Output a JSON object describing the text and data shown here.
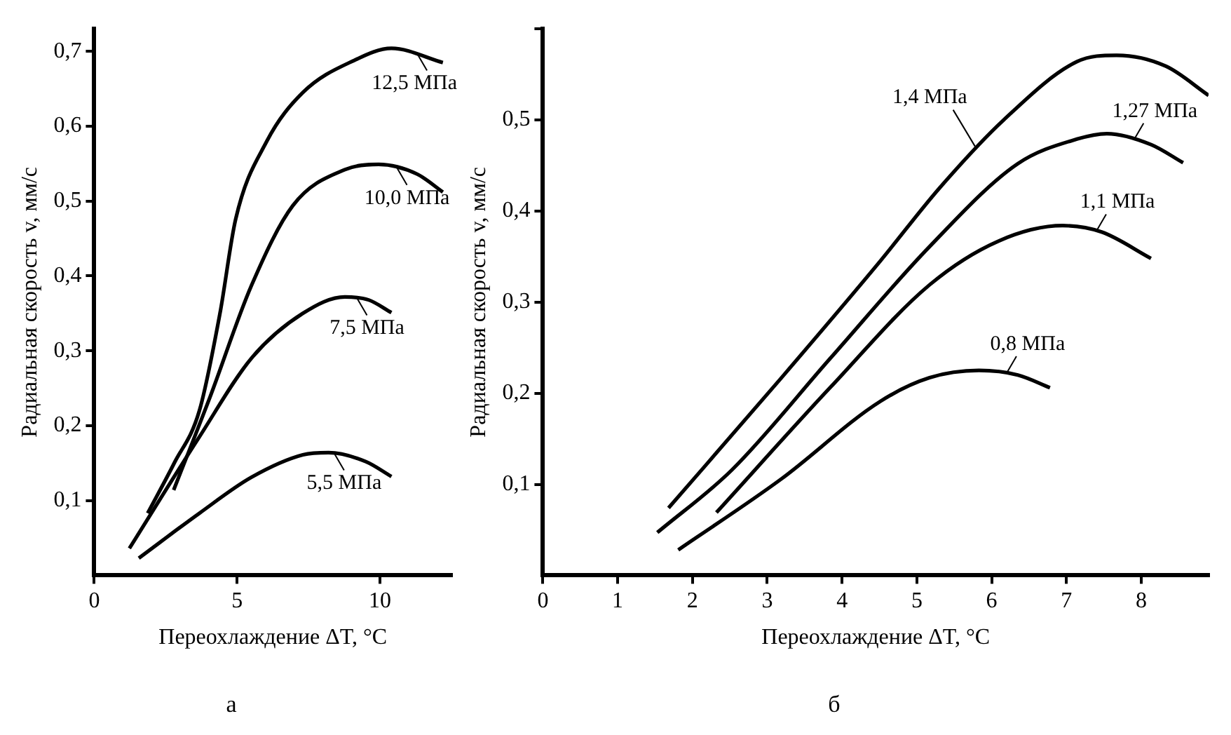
{
  "chart_data": [
    {
      "type": "line",
      "title": "а",
      "xlabel": "Переохлаждение ΔT, °C",
      "ylabel": "Радиальная скорость v, мм/с",
      "annotations": [
        {
          "text": "12,5 МПа",
          "x": 11.3,
          "y": 0.697
        },
        {
          "text": "10,0 МПа",
          "x": 10.6,
          "y": 0.544
        },
        {
          "text": "7,5 МПа",
          "x": 9.2,
          "y": 0.37
        },
        {
          "text": "5,5 МПа",
          "x": 8.4,
          "y": 0.163
        }
      ],
      "xlim": [
        0,
        12.5
      ],
      "ylim": [
        0,
        0.73
      ],
      "xticks": [
        0,
        5,
        10
      ],
      "yticks": [
        {
          "value": 0.1,
          "label": "0,1"
        },
        {
          "value": 0.2,
          "label": "0,2"
        },
        {
          "value": 0.3,
          "label": "0,3"
        },
        {
          "value": 0.4,
          "label": "0,4"
        },
        {
          "value": 0.5,
          "label": "0,5"
        },
        {
          "value": 0.6,
          "label": "0,6"
        },
        {
          "value": 0.7,
          "label": "0,7"
        }
      ],
      "grid": false,
      "marker": "none",
      "series": [
        {
          "color": "#000000",
          "x": [
            1.87,
            2.8,
            3.68,
            4.4,
            4.95,
            6.04,
            7.3,
            9.1,
            10.4,
            12.2
          ],
          "values": [
            0.083,
            0.15,
            0.22,
            0.35,
            0.476,
            0.58,
            0.645,
            0.688,
            0.704,
            0.685
          ]
        },
        {
          "color": "#000000",
          "x": [
            2.78,
            4.05,
            5.5,
            6.95,
            8.77,
            9.95,
            11.3,
            12.2
          ],
          "values": [
            0.114,
            0.238,
            0.387,
            0.494,
            0.542,
            0.549,
            0.536,
            0.512
          ]
        },
        {
          "color": "#000000",
          "x": [
            1.23,
            3.68,
            5.5,
            7.3,
            8.77,
            9.6,
            10.4
          ],
          "values": [
            0.036,
            0.185,
            0.29,
            0.35,
            0.372,
            0.368,
            0.351
          ]
        },
        {
          "color": "#000000",
          "x": [
            1.56,
            3.68,
            5.5,
            7.3,
            8.2,
            9.5,
            10.4
          ],
          "values": [
            0.023,
            0.083,
            0.131,
            0.161,
            0.164,
            0.152,
            0.132
          ]
        }
      ]
    },
    {
      "type": "line",
      "title": "б",
      "xlabel": "Переохлаждение ΔT, °C",
      "ylabel": "Радиальная скорость v, мм/с",
      "annotations": [
        {
          "text": "1,4 МПа",
          "x": 5.8,
          "y": 0.468
        },
        {
          "text": "1,27 МПа",
          "x": 7.9,
          "y": 0.478
        },
        {
          "text": "1,1 МПа",
          "x": 7.4,
          "y": 0.378
        },
        {
          "text": "0,8 МПа",
          "x": 6.2,
          "y": 0.222
        }
      ],
      "xlim": [
        0,
        8.9
      ],
      "ylim": [
        0,
        0.6
      ],
      "xticks": [
        0,
        1,
        2,
        3,
        4,
        5,
        6,
        7,
        8
      ],
      "yticks": [
        {
          "value": 0.1,
          "label": "0,1"
        },
        {
          "value": 0.2,
          "label": "0,2"
        },
        {
          "value": 0.3,
          "label": "0,3"
        },
        {
          "value": 0.4,
          "label": "0,4"
        },
        {
          "value": 0.5,
          "label": "0,5"
        },
        {
          "value": 0.6,
          "label": null
        }
      ],
      "grid": false,
      "marker": "none",
      "series": [
        {
          "color": "#000000",
          "x": [
            1.68,
            3.19,
            4.51,
            5.3,
            6.16,
            7.14,
            7.67,
            8.33,
            8.9
          ],
          "values": [
            0.074,
            0.217,
            0.345,
            0.425,
            0.5,
            0.564,
            0.571,
            0.559,
            0.527
          ]
        },
        {
          "color": "#000000",
          "x": [
            1.53,
            2.53,
            3.85,
            5.17,
            6.35,
            7.14,
            7.54,
            8.13,
            8.56
          ],
          "values": [
            0.047,
            0.116,
            0.239,
            0.361,
            0.452,
            0.479,
            0.485,
            0.473,
            0.453
          ]
        },
        {
          "color": "#000000",
          "x": [
            2.32,
            3.85,
            5.17,
            6.09,
            6.95,
            7.47,
            8.13
          ],
          "values": [
            0.069,
            0.207,
            0.319,
            0.367,
            0.384,
            0.377,
            0.348
          ]
        },
        {
          "color": "#000000",
          "x": [
            1.81,
            3.19,
            4.51,
            5.17,
            5.83,
            6.35,
            6.78
          ],
          "values": [
            0.028,
            0.106,
            0.191,
            0.217,
            0.225,
            0.22,
            0.206
          ]
        }
      ]
    }
  ]
}
